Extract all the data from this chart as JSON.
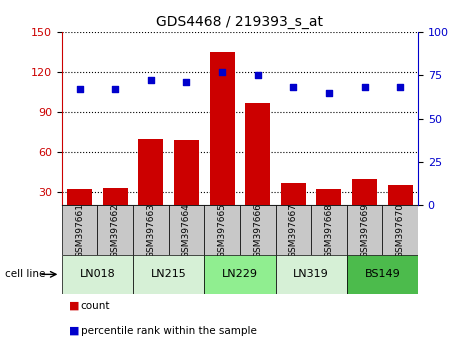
{
  "title": "GDS4468 / 219393_s_at",
  "samples": [
    "GSM397661",
    "GSM397662",
    "GSM397663",
    "GSM397664",
    "GSM397665",
    "GSM397666",
    "GSM397667",
    "GSM397668",
    "GSM397669",
    "GSM397670"
  ],
  "counts": [
    32,
    33,
    70,
    69,
    135,
    97,
    37,
    32,
    40,
    35
  ],
  "percentile_ranks": [
    67,
    67,
    72,
    71,
    77,
    75,
    68,
    65,
    68,
    68
  ],
  "cell_lines": [
    {
      "name": "LN018",
      "samples": [
        0,
        1
      ],
      "color": "#d6f0d6"
    },
    {
      "name": "LN215",
      "samples": [
        2,
        3
      ],
      "color": "#d6f0d6"
    },
    {
      "name": "LN229",
      "samples": [
        4,
        5
      ],
      "color": "#90ee90"
    },
    {
      "name": "LN319",
      "samples": [
        6,
        7
      ],
      "color": "#d6f0d6"
    },
    {
      "name": "BS149",
      "samples": [
        8,
        9
      ],
      "color": "#4cbb4c"
    }
  ],
  "ylim_left": [
    20,
    150
  ],
  "ylim_right": [
    0,
    100
  ],
  "yticks_left": [
    30,
    60,
    90,
    120,
    150
  ],
  "yticks_right": [
    0,
    25,
    50,
    75,
    100
  ],
  "bar_color": "#cc0000",
  "dot_color": "#0000cc",
  "left_axis_color": "#cc0000",
  "right_axis_color": "#0000cc",
  "sample_box_color": "#c8c8c8",
  "legend_count_color": "#cc0000",
  "legend_pct_color": "#0000cc"
}
